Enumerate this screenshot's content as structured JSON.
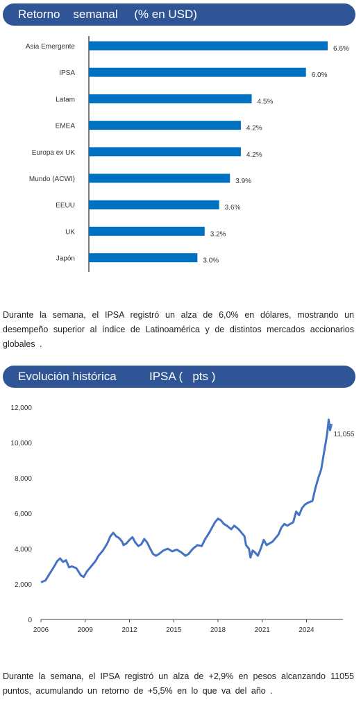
{
  "section1": {
    "title": "Retorno    semanal     (% en USD)",
    "paragraph": "Durante  la semana,  el IPSA registró  un alza  de 6,0% en dólares,  mostrando  un desempeño   superior  al índice de Latinoamérica    y de distintos  mercados accionarios   globales  ."
  },
  "section2": {
    "title": "Evolución histórica          IPSA (   pts )",
    "paragraph": "Durante  la semana,   el IPSA registró   un alza  de +2,9% en pesos  alcanzando     11055 puntos,  acumulando     un retorno  de +5,5% en lo que  va del año ."
  },
  "chart_data": [
    {
      "type": "bar",
      "orientation": "horizontal",
      "categories": [
        "Asia Emergente",
        "IPSA",
        "Latam",
        "EMEA",
        "Europa ex UK",
        "Mundo (ACWI)",
        "EEUU",
        "UK",
        "Japón"
      ],
      "values": [
        6.6,
        6.0,
        4.5,
        4.2,
        4.2,
        3.9,
        3.6,
        3.2,
        3.0
      ],
      "value_labels": [
        "6.6%",
        "6.0%",
        "4.5%",
        "4.2%",
        "4.2%",
        "3.9%",
        "3.6%",
        "3.2%",
        "3.0%"
      ],
      "xlim": [
        0,
        6.6
      ],
      "bar_color": "#0070c0",
      "grid": false
    },
    {
      "type": "line",
      "series_color": "#4472c4",
      "xlim": [
        2006,
        2026
      ],
      "ylim": [
        0,
        12000
      ],
      "x_ticks": [
        2006,
        2009,
        2012,
        2015,
        2018,
        2021,
        2024
      ],
      "x_tick_labels": [
        "2006",
        "2009",
        "2012",
        "2015",
        "2018",
        "2021",
        "2024"
      ],
      "y_ticks": [
        0,
        2000,
        4000,
        6000,
        8000,
        10000,
        12000
      ],
      "y_tick_labels": [
        "0",
        "2,000",
        "4,000",
        "6,000",
        "8,000",
        "10,000",
        "12,000"
      ],
      "end_label": "11,055",
      "points": [
        [
          2006.0,
          2100
        ],
        [
          2006.3,
          2200
        ],
        [
          2006.6,
          2600
        ],
        [
          2006.9,
          3000
        ],
        [
          2007.1,
          3300
        ],
        [
          2007.3,
          3450
        ],
        [
          2007.5,
          3250
        ],
        [
          2007.7,
          3350
        ],
        [
          2007.9,
          2950
        ],
        [
          2008.1,
          3000
        ],
        [
          2008.4,
          2900
        ],
        [
          2008.7,
          2500
        ],
        [
          2008.9,
          2400
        ],
        [
          2009.1,
          2700
        ],
        [
          2009.4,
          3000
        ],
        [
          2009.7,
          3300
        ],
        [
          2009.9,
          3600
        ],
        [
          2010.2,
          3900
        ],
        [
          2010.5,
          4300
        ],
        [
          2010.7,
          4700
        ],
        [
          2010.9,
          4900
        ],
        [
          2011.1,
          4700
        ],
        [
          2011.3,
          4600
        ],
        [
          2011.5,
          4400
        ],
        [
          2011.6,
          4200
        ],
        [
          2011.8,
          4300
        ],
        [
          2012.0,
          4500
        ],
        [
          2012.2,
          4650
        ],
        [
          2012.4,
          4350
        ],
        [
          2012.6,
          4150
        ],
        [
          2012.8,
          4250
        ],
        [
          2013.0,
          4550
        ],
        [
          2013.2,
          4350
        ],
        [
          2013.4,
          4000
        ],
        [
          2013.6,
          3700
        ],
        [
          2013.8,
          3600
        ],
        [
          2014.0,
          3700
        ],
        [
          2014.3,
          3900
        ],
        [
          2014.6,
          4000
        ],
        [
          2014.9,
          3850
        ],
        [
          2015.2,
          3950
        ],
        [
          2015.5,
          3800
        ],
        [
          2015.8,
          3600
        ],
        [
          2016.0,
          3700
        ],
        [
          2016.3,
          4000
        ],
        [
          2016.6,
          4200
        ],
        [
          2016.9,
          4150
        ],
        [
          2017.1,
          4500
        ],
        [
          2017.4,
          4900
        ],
        [
          2017.6,
          5200
        ],
        [
          2017.8,
          5500
        ],
        [
          2018.0,
          5700
        ],
        [
          2018.2,
          5600
        ],
        [
          2018.4,
          5400
        ],
        [
          2018.6,
          5300
        ],
        [
          2018.9,
          5100
        ],
        [
          2019.1,
          5300
        ],
        [
          2019.4,
          5100
        ],
        [
          2019.6,
          4900
        ],
        [
          2019.8,
          4700
        ],
        [
          2019.9,
          4200
        ],
        [
          2020.1,
          4000
        ],
        [
          2020.2,
          3500
        ],
        [
          2020.35,
          3900
        ],
        [
          2020.5,
          3800
        ],
        [
          2020.7,
          3600
        ],
        [
          2020.9,
          4000
        ],
        [
          2021.1,
          4500
        ],
        [
          2021.3,
          4200
        ],
        [
          2021.5,
          4300
        ],
        [
          2021.7,
          4400
        ],
        [
          2021.9,
          4600
        ],
        [
          2022.1,
          4800
        ],
        [
          2022.3,
          5200
        ],
        [
          2022.5,
          5400
        ],
        [
          2022.7,
          5300
        ],
        [
          2022.9,
          5400
        ],
        [
          2023.1,
          5500
        ],
        [
          2023.3,
          6100
        ],
        [
          2023.5,
          5900
        ],
        [
          2023.7,
          6300
        ],
        [
          2023.9,
          6500
        ],
        [
          2024.1,
          6600
        ],
        [
          2024.4,
          6700
        ],
        [
          2024.6,
          7400
        ],
        [
          2024.8,
          8000
        ],
        [
          2025.0,
          8500
        ],
        [
          2025.2,
          9500
        ],
        [
          2025.4,
          10500
        ],
        [
          2025.5,
          11300
        ],
        [
          2025.6,
          10700
        ],
        [
          2025.7,
          11055
        ]
      ]
    }
  ]
}
